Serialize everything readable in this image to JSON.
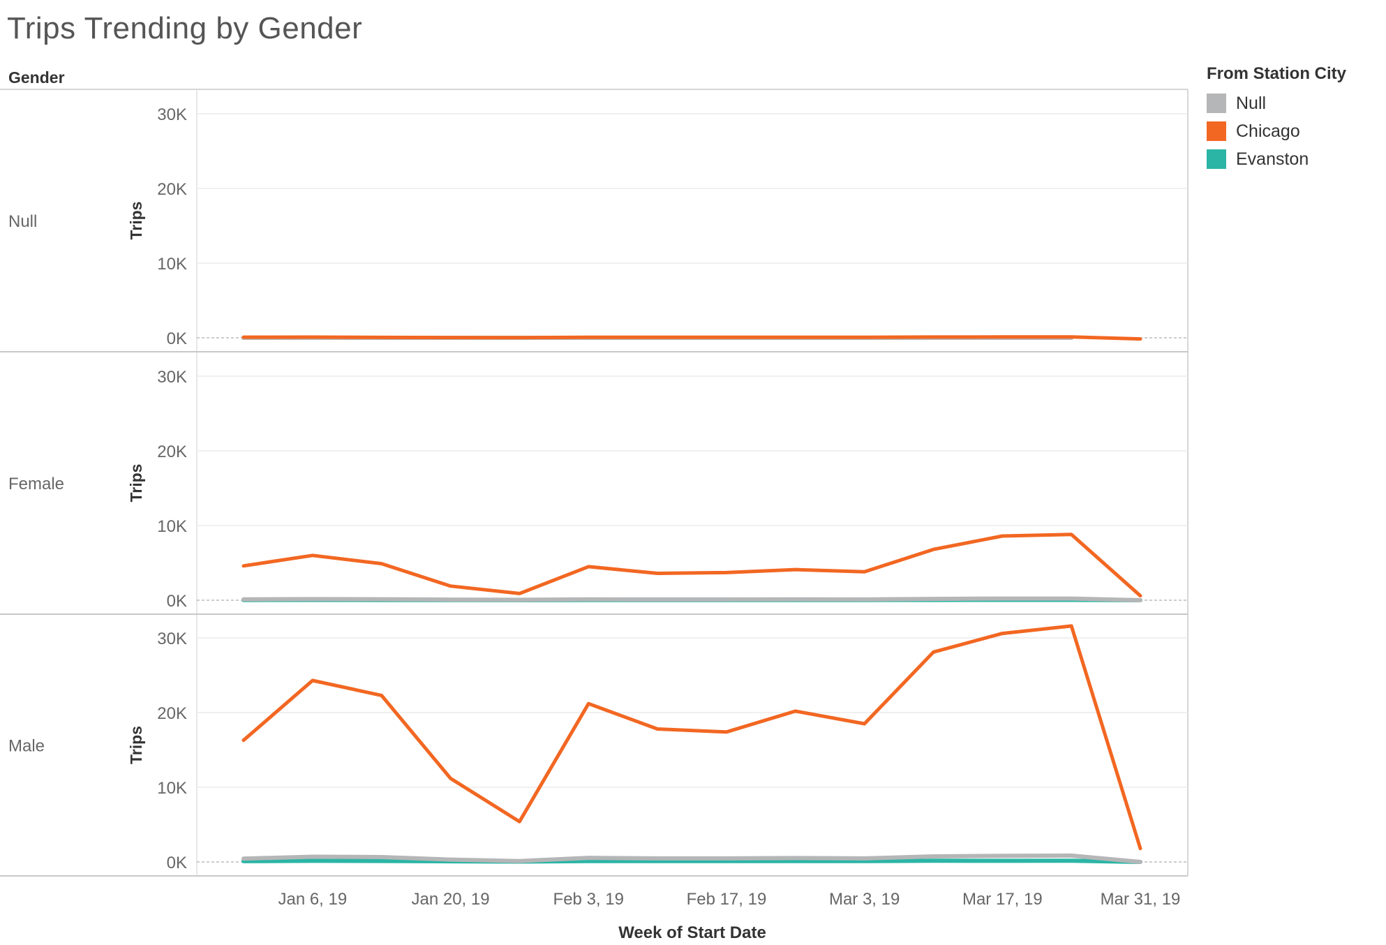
{
  "title": "Trips Trending by Gender",
  "row_header": "Gender",
  "legend": {
    "title": "From Station City",
    "items": [
      {
        "label": "Null",
        "color": "#B5B6B7"
      },
      {
        "label": "Chicago",
        "color": "#F26722"
      },
      {
        "label": "Evanston",
        "color": "#2BB5A5"
      }
    ]
  },
  "chart_data": {
    "type": "line",
    "title": "Trips Trending by Gender",
    "xlabel": "Week of Start Date",
    "ylabel": "Trips",
    "ylim": [
      0,
      33500
    ],
    "y_ticks": [
      0,
      10000,
      20000,
      30000
    ],
    "y_tick_labels": [
      "0K",
      "10K",
      "20K",
      "30K"
    ],
    "x": [
      "Dec 30, 18",
      "Jan 6, 19",
      "Jan 13, 19",
      "Jan 20, 19",
      "Jan 27, 19",
      "Feb 3, 19",
      "Feb 10, 19",
      "Feb 17, 19",
      "Feb 24, 19",
      "Mar 3, 19",
      "Mar 10, 19",
      "Mar 17, 19",
      "Mar 24, 19",
      "Mar 31, 19"
    ],
    "x_tick_labels": [
      "Jan 6, 19",
      "Jan 20, 19",
      "Feb 3, 19",
      "Feb 17, 19",
      "Mar 3, 19",
      "Mar 17, 19",
      "Mar 31, 19"
    ],
    "panels": [
      {
        "gender": "Null",
        "series": [
          {
            "name": "Chicago",
            "values": [
              80,
              90,
              60,
              40,
              30,
              70,
              70,
              70,
              70,
              70,
              100,
              110,
              120,
              -150
            ]
          },
          {
            "name": "Evanston",
            "values": [
              0,
              0,
              0,
              0,
              0,
              0,
              0,
              0,
              0,
              0,
              0,
              0,
              0,
              null
            ]
          },
          {
            "name": "Null",
            "values": [
              0,
              0,
              0,
              0,
              0,
              0,
              0,
              0,
              0,
              0,
              0,
              0,
              0,
              null
            ]
          }
        ]
      },
      {
        "gender": "Female",
        "series": [
          {
            "name": "Chicago",
            "values": [
              4600,
              6000,
              4900,
              1900,
              900,
              4500,
              3600,
              3700,
              4100,
              3800,
              6800,
              8600,
              8800,
              600
            ]
          },
          {
            "name": "Evanston",
            "values": [
              30,
              40,
              30,
              20,
              10,
              30,
              30,
              30,
              30,
              30,
              40,
              50,
              50,
              0
            ]
          },
          {
            "name": "Null",
            "values": [
              120,
              150,
              130,
              80,
              60,
              110,
              100,
              100,
              110,
              100,
              180,
              220,
              220,
              0
            ]
          }
        ]
      },
      {
        "gender": "Male",
        "series": [
          {
            "name": "Chicago",
            "values": [
              16300,
              24300,
              22300,
              11200,
              5400,
              21200,
              17800,
              17400,
              20200,
              18500,
              28100,
              30600,
              31600,
              1800
            ]
          },
          {
            "name": "Evanston",
            "values": [
              100,
              150,
              130,
              80,
              50,
              120,
              110,
              110,
              120,
              120,
              160,
              150,
              170,
              0
            ]
          },
          {
            "name": "Null",
            "values": [
              450,
              700,
              650,
              320,
              120,
              550,
              480,
              480,
              520,
              480,
              750,
              820,
              850,
              0
            ]
          }
        ]
      }
    ]
  }
}
